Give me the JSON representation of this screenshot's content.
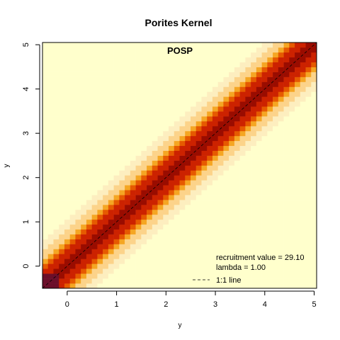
{
  "chart_data": {
    "type": "heatmap",
    "title": "Porites Kernel",
    "panel_label": "POSP",
    "xlabel": "y",
    "ylabel": "y",
    "xlim": [
      -0.5,
      5.05
    ],
    "ylim": [
      -0.5,
      5.05
    ],
    "x_ticks": [
      0,
      1,
      2,
      3,
      4,
      5
    ],
    "x_tick_labels": [
      "0",
      "1",
      "2",
      "3",
      "4",
      "5"
    ],
    "y_ticks": [
      0,
      1,
      2,
      3,
      4,
      5
    ],
    "y_tick_labels": [
      "0",
      "1",
      "2",
      "3",
      "4",
      "5"
    ],
    "grid": false,
    "colormap": "heat (high = dark red/purple, low = pale yellow)",
    "color_ramp": [
      "#6b0f2a",
      "#9a0c00",
      "#cc2200",
      "#e65a00",
      "#f5a623",
      "#fcd38a",
      "#fdeebf",
      "#ffffcc"
    ],
    "kernel": {
      "description": "Growth kernel concentrated along the 1:1 diagonal; intensity falls off with distance from the diagonal",
      "diagonal_spread_sd": 0.35
    },
    "legend": {
      "position": "bottom-right",
      "entries": [
        {
          "text": "recruitment value = 29.10"
        },
        {
          "text": "lambda = 1.00"
        },
        {
          "text": "1:1 line",
          "line": "dashed"
        }
      ]
    },
    "reference_line": {
      "slope": 1,
      "intercept": 0,
      "style": "dashed"
    },
    "recruitment_value": 29.1,
    "lambda": 1.0
  }
}
